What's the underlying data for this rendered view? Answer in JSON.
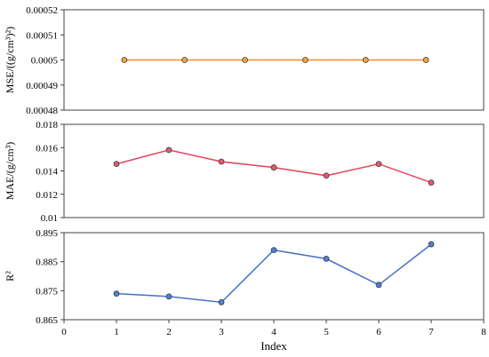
{
  "chart_data": [
    {
      "type": "line",
      "ylabel": "MSE/((g/cm³)²)",
      "ylim": [
        0.00048,
        0.00052
      ],
      "yticks": [
        "0.00048",
        "0.00049",
        "0.0005",
        "0.00051",
        "0.00052"
      ],
      "ytick_values": [
        0.00048,
        0.00049,
        0.0005,
        0.00051,
        0.00052
      ],
      "x": [
        1.15,
        2.3,
        3.45,
        4.6,
        5.75,
        6.9
      ],
      "values": [
        0.0005,
        0.0005,
        0.0005,
        0.0005,
        0.0005,
        0.0005
      ],
      "line_color": "#f28e2b",
      "marker_color": "#f5a340",
      "grid": false
    },
    {
      "type": "line",
      "ylabel": "MAE/(g/cm³)",
      "ylim": [
        0.01,
        0.018
      ],
      "yticks": [
        "0.01",
        "0.012",
        "0.014",
        "0.016",
        "0.018"
      ],
      "ytick_values": [
        0.01,
        0.012,
        0.014,
        0.016,
        0.018
      ],
      "x": [
        1,
        2,
        3,
        4,
        5,
        6,
        7
      ],
      "values": [
        0.0146,
        0.0158,
        0.0148,
        0.0143,
        0.0136,
        0.0146,
        0.013
      ],
      "line_color": "#e8445a",
      "marker_color": "#e35a6e",
      "grid": false
    },
    {
      "type": "line",
      "ylabel": "R²",
      "ylim": [
        0.865,
        0.895
      ],
      "yticks": [
        "0.865",
        "0.875",
        "0.885",
        "0.895"
      ],
      "ytick_values": [
        0.865,
        0.875,
        0.885,
        0.895
      ],
      "x": [
        1,
        2,
        3,
        4,
        5,
        6,
        7
      ],
      "values": [
        0.874,
        0.873,
        0.871,
        0.889,
        0.886,
        0.877,
        0.891
      ],
      "line_color": "#4472c4",
      "marker_color": "#4f7fd6",
      "xlabel": "Index",
      "xlim": [
        0,
        8
      ],
      "xticks": [
        "0",
        "1",
        "2",
        "3",
        "4",
        "5",
        "6",
        "7",
        "8"
      ],
      "xtick_values": [
        0,
        1,
        2,
        3,
        4,
        5,
        6,
        7,
        8
      ],
      "grid": false
    }
  ]
}
